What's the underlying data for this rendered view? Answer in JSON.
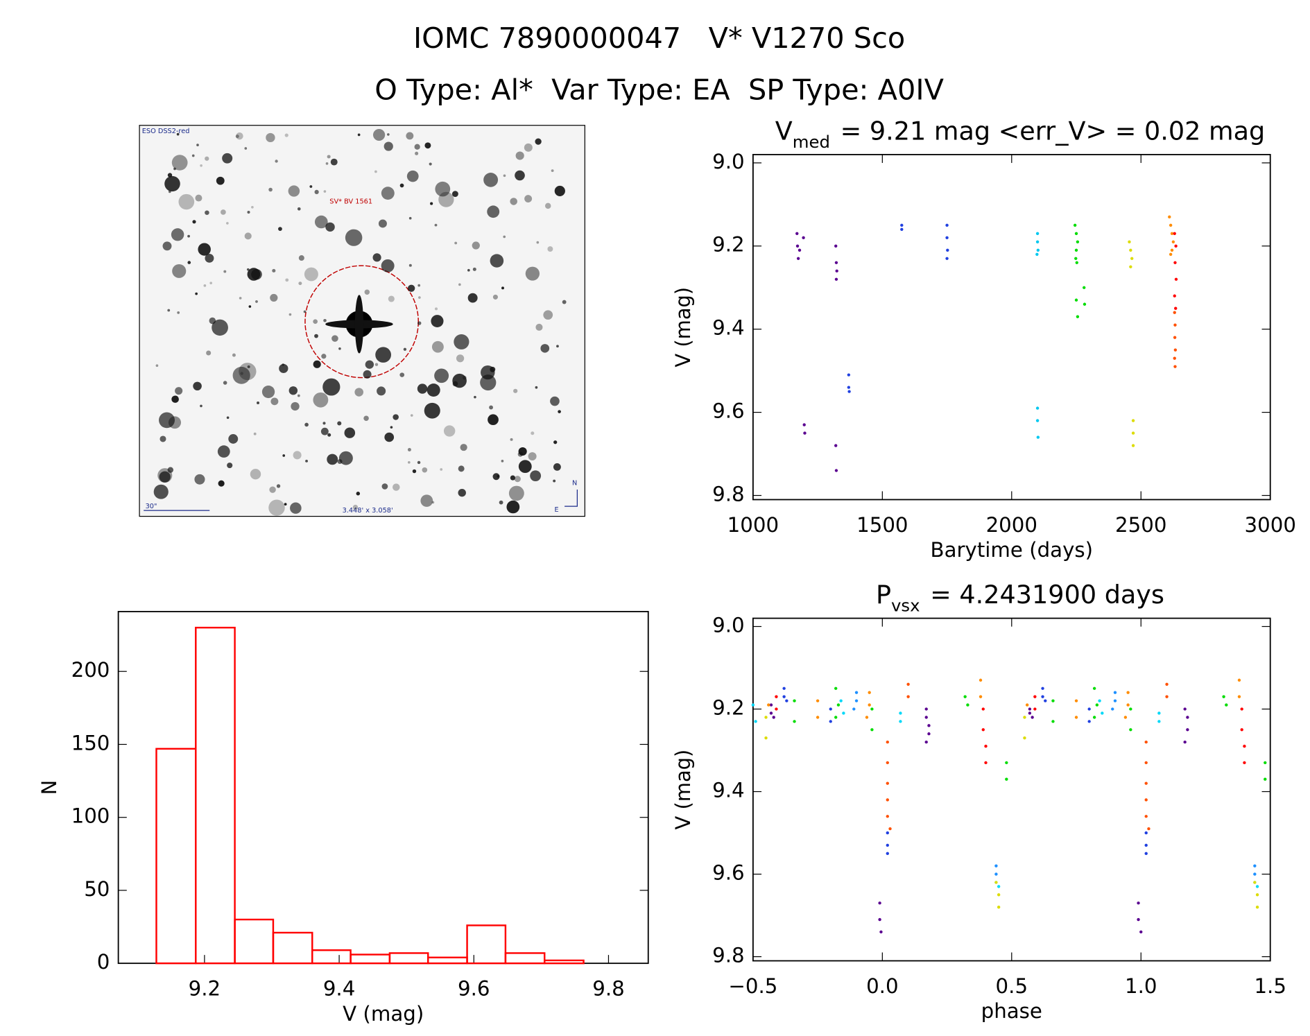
{
  "header": {
    "title": "IOMC 7890000047   V* V1270 Sco",
    "subtitle": "O Type: Al*  Var Type: EA  SP Type: A0IV"
  },
  "image_panel": {
    "survey": "ESO DSS2-red",
    "target": "SV* BV 1561",
    "scale": "30\"",
    "size": "3.448' x 3.058'",
    "north": "N",
    "east": "E"
  },
  "chart_data": [
    {
      "type": "scatter",
      "title_main": "V",
      "title_sub": "med",
      "title_rest": "= 9.21 mag <err_V> = 0.02 mag",
      "x_label": "Barytime (days)",
      "y_label": "V (mag)",
      "xlim": [
        1000,
        3000
      ],
      "xticks": [
        1000,
        1500,
        2000,
        2500,
        3000
      ],
      "ylim": [
        9.81,
        8.98
      ],
      "yticks": [
        {
          "value": 9.0,
          "label": "9.0"
        },
        9.2,
        9.4,
        9.6,
        9.8
      ],
      "series": [
        {
          "color": "#5a0090",
          "x": [
            1170,
            1172,
            1175,
            1180,
            1195,
            1198,
            1200,
            1320,
            1322,
            1322,
            1324,
            1320,
            1322
          ],
          "values": [
            9.17,
            9.2,
            9.23,
            9.21,
            9.18,
            9.63,
            9.65,
            9.2,
            9.24,
            9.28,
            9.26,
            9.68,
            9.74
          ]
        },
        {
          "color": "#2040e0",
          "x": [
            1370,
            1370,
            1372,
            1575,
            1575,
            1750,
            1750,
            1752,
            1750
          ],
          "values": [
            9.51,
            9.54,
            9.55,
            9.15,
            9.16,
            9.15,
            9.18,
            9.21,
            9.23
          ]
        },
        {
          "color": "#00c8f0",
          "x": [
            2100,
            2100,
            2102,
            2098,
            2100,
            2100,
            2102
          ],
          "values": [
            9.17,
            9.19,
            9.21,
            9.22,
            9.59,
            9.62,
            9.66
          ]
        },
        {
          "color": "#00dc00",
          "x": [
            2245,
            2250,
            2255,
            2250,
            2248,
            2252,
            2250,
            2255,
            2280,
            2282
          ],
          "values": [
            9.15,
            9.17,
            9.19,
            9.21,
            9.23,
            9.24,
            9.33,
            9.37,
            9.3,
            9.34
          ]
        },
        {
          "color": "#dcdc00",
          "x": [
            2455,
            2460,
            2465,
            2460,
            2470,
            2470,
            2470
          ],
          "values": [
            9.19,
            9.21,
            9.23,
            9.25,
            9.62,
            9.65,
            9.68
          ]
        },
        {
          "color": "#ff8c00",
          "x": [
            2610,
            2615,
            2620,
            2625,
            2620,
            2615
          ],
          "values": [
            9.13,
            9.15,
            9.17,
            9.19,
            9.21,
            9.22
          ]
        },
        {
          "color": "#ff0000",
          "x": [
            2630,
            2635,
            2632,
            2636,
            2630,
            2634
          ],
          "values": [
            9.17,
            9.2,
            9.24,
            9.28,
            9.32,
            9.35
          ]
        },
        {
          "color": "#ff5000",
          "x": [
            2630,
            2632,
            2631,
            2633,
            2630,
            2632
          ],
          "values": [
            9.36,
            9.39,
            9.42,
            9.45,
            9.47,
            9.49
          ]
        }
      ]
    },
    {
      "type": "histogram",
      "x_label": "V (mag)",
      "y_label": "N",
      "color": "#ff0000",
      "bins": [
        9.1285,
        9.187,
        9.245,
        9.302,
        9.36,
        9.417,
        9.475,
        9.532,
        9.59,
        9.647,
        9.705,
        9.763
      ],
      "values": [
        147,
        230,
        30,
        21,
        9,
        6,
        7,
        4,
        26,
        7,
        2
      ],
      "xlim": [
        9.072,
        9.859
      ],
      "xticks": [
        9.2,
        9.4,
        9.6,
        9.8
      ],
      "ylim": [
        0,
        241
      ],
      "yticks": [
        0,
        50,
        100,
        150,
        200
      ]
    },
    {
      "type": "scatter",
      "title_main": "P",
      "title_sub": "vsx",
      "title_rest": "= 4.2431900 days",
      "x_label": "phase",
      "y_label": "V (mag)",
      "xlim": [
        -0.5,
        1.5
      ],
      "xticks": [
        {
          "value": -0.5,
          "label": "−0.5"
        },
        {
          "value": 0,
          "label": "0.0"
        },
        0.5,
        {
          "value": 1,
          "label": "1.0"
        },
        1.5
      ],
      "ylim": [
        9.81,
        8.98
      ],
      "yticks": [
        {
          "value": 9.0,
          "label": "9.0"
        },
        9.2,
        9.4,
        9.6,
        9.8
      ],
      "series": [
        {
          "color": "#5a0090",
          "x": [
            -0.43,
            -0.43,
            -0.42,
            0.17,
            0.17,
            0.18,
            0.18,
            0.17,
            -0.01,
            -0.01,
            -0.005,
            0.57,
            0.57,
            0.58,
            1.17,
            1.18,
            1.18,
            1.17,
            0.99,
            0.99,
            1.0
          ],
          "values": [
            9.19,
            9.21,
            9.22,
            9.2,
            9.22,
            9.24,
            9.26,
            9.28,
            9.67,
            9.71,
            9.74,
            9.2,
            9.21,
            9.22,
            9.2,
            9.22,
            9.25,
            9.28,
            9.67,
            9.71,
            9.74
          ]
        },
        {
          "color": "#2040e0",
          "x": [
            -0.38,
            -0.38,
            -0.37,
            -0.2,
            -0.2,
            0.02,
            0.02,
            0.02,
            0.62,
            0.62,
            0.63,
            0.8,
            0.8,
            1.02,
            1.02,
            1.02
          ],
          "values": [
            9.15,
            9.17,
            9.18,
            9.2,
            9.23,
            9.5,
            9.53,
            9.55,
            9.15,
            9.17,
            9.18,
            9.2,
            9.23,
            9.5,
            9.53,
            9.55
          ]
        },
        {
          "color": "#1e90ff",
          "x": [
            -0.1,
            -0.1,
            -0.11,
            0.9,
            0.9,
            0.89,
            0.44,
            0.44,
            1.44,
            1.44
          ],
          "values": [
            9.16,
            9.18,
            9.2,
            9.16,
            9.18,
            9.2,
            9.58,
            9.6,
            9.58,
            9.6
          ]
        },
        {
          "color": "#00d8f8",
          "x": [
            -0.5,
            -0.49,
            -0.16,
            -0.15,
            0.07,
            0.07,
            0.84,
            0.85,
            1.07,
            1.07,
            0.44,
            0.45,
            1.44,
            1.45
          ],
          "values": [
            9.19,
            9.23,
            9.18,
            9.21,
            9.21,
            9.23,
            9.18,
            9.21,
            9.21,
            9.23,
            9.62,
            9.63,
            9.62,
            9.63
          ]
        },
        {
          "color": "#00dc00",
          "x": [
            -0.34,
            -0.34,
            -0.18,
            -0.17,
            -0.18,
            -0.04,
            -0.04,
            0.32,
            0.33,
            0.48,
            0.48,
            0.66,
            0.66,
            0.82,
            0.83,
            0.82,
            0.96,
            0.96,
            1.32,
            1.33,
            1.48,
            1.48
          ],
          "values": [
            9.18,
            9.23,
            9.15,
            9.19,
            9.22,
            9.2,
            9.25,
            9.17,
            9.19,
            9.33,
            9.37,
            9.18,
            9.23,
            9.15,
            9.19,
            9.22,
            9.2,
            9.25,
            9.17,
            9.19,
            9.33,
            9.37
          ]
        },
        {
          "color": "#dcdc00",
          "x": [
            -0.45,
            -0.45,
            0.44,
            0.45,
            0.45,
            0.55,
            0.55,
            1.44,
            1.45,
            1.45
          ],
          "values": [
            9.22,
            9.27,
            9.62,
            9.65,
            9.68,
            9.22,
            9.27,
            9.62,
            9.65,
            9.68
          ]
        },
        {
          "color": "#ff8c00",
          "x": [
            -0.44,
            -0.25,
            -0.25,
            -0.05,
            -0.05,
            -0.06,
            0.38,
            0.38,
            0.56,
            0.75,
            0.75,
            0.95,
            0.95,
            0.94,
            1.38,
            1.38
          ],
          "values": [
            9.19,
            9.18,
            9.22,
            9.16,
            9.19,
            9.22,
            9.13,
            9.17,
            9.19,
            9.18,
            9.22,
            9.16,
            9.19,
            9.22,
            9.13,
            9.17
          ]
        },
        {
          "color": "#ff5000",
          "x": [
            0.02,
            0.02,
            0.02,
            0.02,
            0.02,
            0.03,
            0.1,
            0.1,
            1.02,
            1.02,
            1.02,
            1.02,
            1.02,
            1.03,
            1.1,
            1.1
          ],
          "values": [
            9.28,
            9.33,
            9.38,
            9.42,
            9.46,
            9.49,
            9.14,
            9.17,
            9.28,
            9.33,
            9.38,
            9.42,
            9.46,
            9.49,
            9.14,
            9.17
          ]
        },
        {
          "color": "#ff0000",
          "x": [
            -0.41,
            -0.41,
            0.39,
            0.39,
            0.4,
            0.4,
            0.59,
            0.59,
            1.39,
            1.39,
            1.4,
            1.4
          ],
          "values": [
            9.17,
            9.2,
            9.2,
            9.25,
            9.29,
            9.33,
            9.17,
            9.2,
            9.2,
            9.25,
            9.29,
            9.33
          ]
        }
      ]
    }
  ]
}
